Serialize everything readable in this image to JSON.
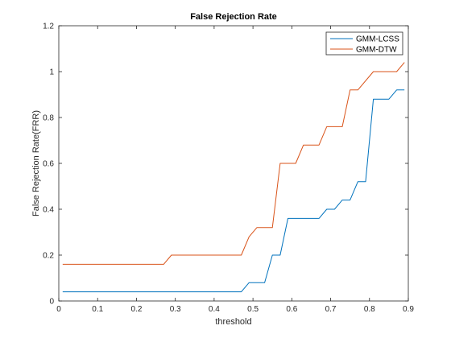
{
  "chart_data": {
    "type": "line",
    "title": "False Rejection Rate",
    "xlabel": "threshold",
    "ylabel": "False Rejection Rate(FRR)",
    "xlim": [
      0,
      0.9
    ],
    "ylim": [
      0,
      1.2
    ],
    "xticks": [
      "0",
      "0.1",
      "0.2",
      "0.3",
      "0.4",
      "0.5",
      "0.6",
      "0.7",
      "0.8",
      "0.9"
    ],
    "yticks": [
      "0",
      "0.2",
      "0.4",
      "0.6",
      "0.8",
      "1",
      "1.2"
    ],
    "grid": false,
    "legend_position": "top-right",
    "series": [
      {
        "name": "GMM-LCSS",
        "color": "#0072BD",
        "x": [
          0.01,
          0.47,
          0.49,
          0.53,
          0.55,
          0.57,
          0.59,
          0.67,
          0.69,
          0.71,
          0.73,
          0.75,
          0.77,
          0.79,
          0.81,
          0.85,
          0.87,
          0.89
        ],
        "y": [
          0.04,
          0.04,
          0.08,
          0.08,
          0.2,
          0.2,
          0.36,
          0.36,
          0.4,
          0.4,
          0.44,
          0.44,
          0.52,
          0.52,
          0.88,
          0.88,
          0.92,
          0.92
        ]
      },
      {
        "name": "GMM-DTW",
        "color": "#D95319",
        "x": [
          0.01,
          0.27,
          0.29,
          0.47,
          0.49,
          0.51,
          0.55,
          0.57,
          0.61,
          0.63,
          0.67,
          0.69,
          0.73,
          0.75,
          0.77,
          0.81,
          0.87,
          0.89
        ],
        "y": [
          0.16,
          0.16,
          0.2,
          0.2,
          0.28,
          0.32,
          0.32,
          0.6,
          0.6,
          0.68,
          0.68,
          0.76,
          0.76,
          0.92,
          0.92,
          1.0,
          1.0,
          1.04
        ]
      }
    ]
  }
}
